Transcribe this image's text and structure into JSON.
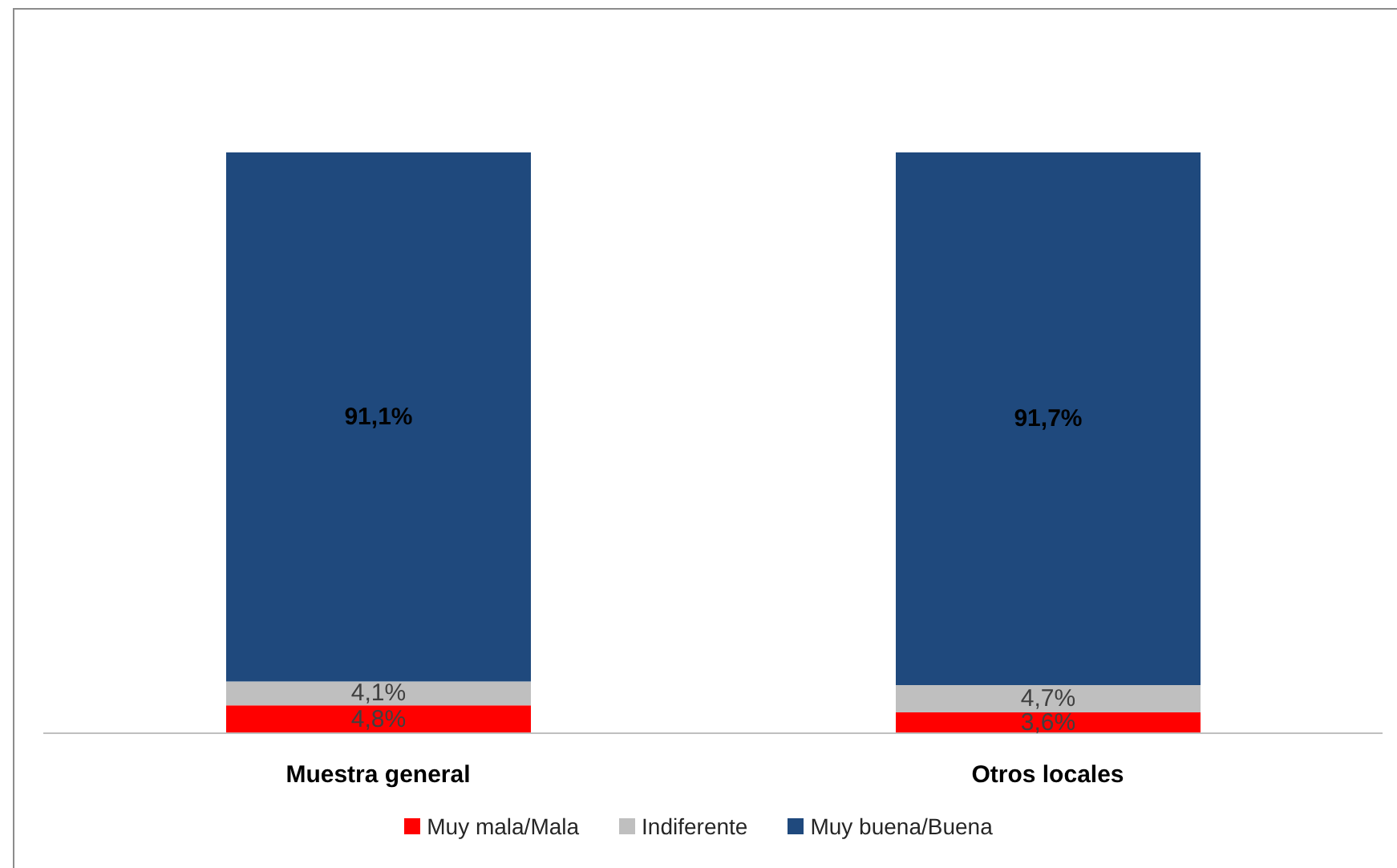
{
  "chart_data": {
    "type": "bar",
    "stacked": true,
    "categories": [
      "Muestra general",
      "Otros locales"
    ],
    "series": [
      {
        "name": "Muy mala/Mala",
        "color": "#ff0000",
        "values": [
          4.8,
          3.6
        ],
        "value_labels": [
          "4,8%",
          "3,6%"
        ]
      },
      {
        "name": "Indiferente",
        "color": "#bfbfbf",
        "values": [
          4.1,
          4.7
        ],
        "value_labels": [
          "4,1%",
          "4,7%"
        ]
      },
      {
        "name": "Muy buena/Buena",
        "color": "#1f497d",
        "values": [
          91.1,
          91.7
        ],
        "value_labels": [
          "91,1%",
          "91,7%"
        ]
      }
    ],
    "ylim": [
      0,
      100
    ],
    "tick_labels": "x",
    "legend": "bottom"
  }
}
